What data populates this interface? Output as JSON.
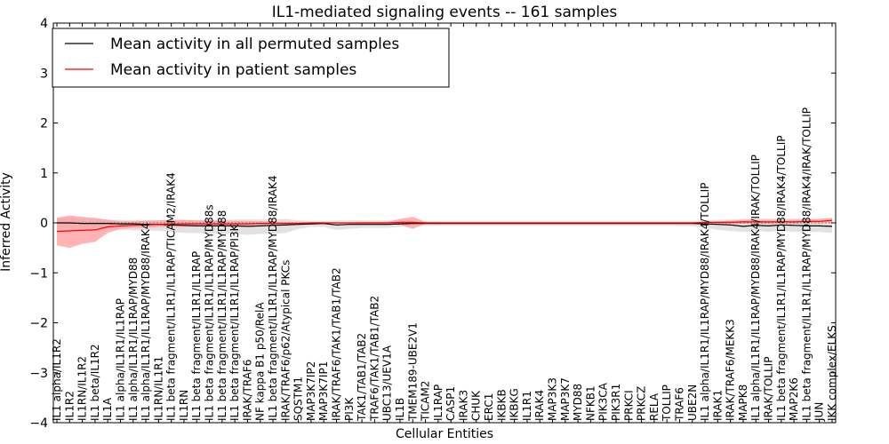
{
  "chart_data": {
    "type": "line",
    "title": "IL1-mediated signaling events -- 161 samples",
    "xlabel": "Cellular Entities",
    "ylabel": "Inferred Activity",
    "ylim": [
      -4,
      4
    ],
    "yticks": [
      4,
      3,
      2,
      1,
      0,
      -1,
      -2,
      -3,
      -4
    ],
    "ytick_labels": [
      "4",
      "3",
      "2",
      "1",
      "0",
      "−1",
      "−2",
      "−3",
      "−4"
    ],
    "grid": false,
    "legend_position": "top-left",
    "categories": [
      "IL1 alpha/IL1R2",
      "IL1R2",
      "IL1RN/IL1R2",
      "IL1 beta/IL1R2",
      "IL1A",
      "IL1 alpha/IL1R1/IL1RAP",
      "IL1 alpha/IL1R1/IL1RAP/MYD88",
      "IL1 alpha/IL1R1/IL1RAP/MYD88/IRAK4",
      "IL1RN/IL1R1",
      "IL1 beta fragment/IL1R1/IL1RAP/TICAM2/IRAK4",
      "IL1RN",
      "IL1 beta fragment/IL1R1/IL1RAP",
      "IL1 beta fragment/IL1R1/IL1RAP/MYD88s",
      "IL1 beta fragment/IL1R1/IL1RAP/MYD88",
      "IL1 beta fragment/IL1R1/IL1RAP/PI3K",
      "IRAK/TRAF6",
      "NF kappa B1 p50/RelA",
      "IL1 beta fragment/IL1R1/IL1RAP/MYD88/IRAK4",
      "IRAK/TRAF6/p62/Atypical PKCs",
      "SQSTM1",
      "MAP3K7IP2",
      "MAP3K7IP1",
      "IRAK/TRAF6/TAK1/TAB1/TAB2",
      "PI3K",
      "TAK1/TAB1/TAB2",
      "TRAF6/TAK1/TAB1/TAB2",
      "UBC13/UEV1A",
      "IL1B",
      "TMEM189-UBE2V1",
      "TICAM2",
      "IL1RAP",
      "CASP1",
      "IRAK3",
      "CHUK",
      "ERC1",
      "IKBKB",
      "IKBKG",
      "IL1R1",
      "IRAK4",
      "MAP3K3",
      "MAP3K7",
      "MYD88",
      "NFKB1",
      "PIK3CA",
      "PIK3R1",
      "PRKCI",
      "PRKCZ",
      "RELA",
      "TOLLIP",
      "TRAF6",
      "UBE2N",
      "IL1 alpha/IL1R1/IL1RAP/MYD88/IRAK4/TOLLIP",
      "IRAK1",
      "IRAK/TRAF6/MEKK3",
      "MAPK8",
      "IL1 alpha/IL1R1/IL1RAP/MYD88/IRAK4/IRAK/TOLLIP",
      "IRAK/TOLLIP",
      "IL1 beta fragment/IL1R1/IL1RAP/MYD88/IRAK4/TOLLIP",
      "MAP2K6",
      "IL1 beta fragment/IL1R1/IL1RAP/MYD88/IRAK4/IRAK/TOLLIP",
      "JUN",
      "IKK complex/ELKS"
    ],
    "series": [
      {
        "name": "Mean activity in all permuted samples",
        "color": "#000000",
        "values": [
          0.0,
          0.0,
          -0.01,
          -0.01,
          -0.01,
          -0.02,
          -0.02,
          -0.03,
          -0.03,
          -0.04,
          -0.05,
          -0.06,
          -0.06,
          -0.06,
          -0.06,
          -0.07,
          -0.06,
          -0.05,
          -0.04,
          -0.03,
          -0.02,
          -0.01,
          -0.04,
          -0.03,
          -0.03,
          -0.03,
          -0.03,
          -0.02,
          -0.01,
          -0.01,
          -0.01,
          -0.01,
          -0.01,
          -0.01,
          -0.01,
          -0.01,
          -0.01,
          -0.01,
          -0.01,
          -0.01,
          -0.01,
          -0.01,
          -0.01,
          -0.01,
          -0.01,
          -0.01,
          -0.01,
          -0.01,
          -0.01,
          -0.01,
          -0.01,
          -0.02,
          -0.03,
          -0.04,
          -0.07,
          -0.05,
          -0.06,
          -0.04,
          -0.05,
          -0.06,
          -0.06,
          -0.07
        ],
        "band_upper": [
          0.1,
          0.1,
          0.08,
          0.08,
          0.07,
          0.06,
          0.06,
          0.06,
          0.06,
          0.06,
          0.06,
          0.06,
          0.06,
          0.06,
          0.07,
          0.07,
          0.07,
          0.07,
          0.08,
          0.05,
          0.04,
          0.04,
          0.05,
          0.05,
          0.05,
          0.05,
          0.05,
          0.05,
          0.05,
          0.04,
          0.04,
          0.04,
          0.04,
          0.04,
          0.04,
          0.04,
          0.04,
          0.04,
          0.04,
          0.04,
          0.04,
          0.04,
          0.04,
          0.04,
          0.04,
          0.04,
          0.04,
          0.04,
          0.04,
          0.04,
          0.04,
          0.05,
          0.06,
          0.07,
          0.08,
          0.08,
          0.09,
          0.08,
          0.09,
          0.08,
          0.08,
          0.1
        ],
        "band_lower": [
          -0.1,
          -0.1,
          -0.12,
          -0.12,
          -0.13,
          -0.14,
          -0.15,
          -0.15,
          -0.16,
          -0.18,
          -0.2,
          -0.2,
          -0.22,
          -0.22,
          -0.22,
          -0.24,
          -0.22,
          -0.22,
          -0.2,
          -0.12,
          -0.08,
          -0.08,
          -0.14,
          -0.12,
          -0.1,
          -0.1,
          -0.1,
          -0.08,
          -0.06,
          -0.06,
          -0.06,
          -0.06,
          -0.06,
          -0.06,
          -0.06,
          -0.06,
          -0.06,
          -0.06,
          -0.06,
          -0.06,
          -0.06,
          -0.06,
          -0.06,
          -0.06,
          -0.06,
          -0.06,
          -0.06,
          -0.06,
          -0.06,
          -0.06,
          -0.07,
          -0.1,
          -0.14,
          -0.16,
          -0.18,
          -0.16,
          -0.18,
          -0.16,
          -0.18,
          -0.18,
          -0.18,
          -0.2
        ]
      },
      {
        "name": "Mean activity in patient samples",
        "color": "#ff0000",
        "values": [
          -0.17,
          -0.16,
          -0.15,
          -0.14,
          -0.08,
          -0.06,
          -0.05,
          -0.04,
          -0.03,
          -0.02,
          -0.02,
          -0.02,
          -0.02,
          -0.02,
          -0.02,
          -0.02,
          -0.01,
          -0.01,
          -0.01,
          -0.01,
          0.0,
          0.0,
          0.0,
          0.0,
          0.0,
          0.0,
          0.0,
          0.01,
          0.01,
          0.0,
          0.0,
          0.0,
          0.0,
          0.0,
          0.0,
          0.0,
          0.0,
          0.0,
          0.0,
          0.0,
          0.0,
          0.0,
          0.0,
          0.0,
          0.0,
          0.0,
          0.0,
          0.0,
          0.0,
          0.0,
          0.0,
          0.01,
          0.01,
          0.01,
          0.02,
          0.02,
          0.02,
          0.02,
          0.02,
          0.03,
          0.03,
          0.05
        ],
        "band_upper": [
          0.1,
          0.15,
          0.12,
          0.1,
          0.06,
          0.03,
          0.03,
          0.04,
          0.05,
          0.06,
          0.06,
          0.05,
          0.05,
          0.05,
          0.04,
          0.04,
          0.03,
          0.03,
          0.02,
          0.02,
          0.01,
          0.01,
          0.01,
          0.01,
          0.02,
          0.02,
          0.02,
          0.08,
          0.12,
          0.02,
          0.01,
          0.01,
          0.01,
          0.01,
          0.01,
          0.01,
          0.01,
          0.01,
          0.01,
          0.01,
          0.01,
          0.01,
          0.01,
          0.01,
          0.01,
          0.01,
          0.01,
          0.01,
          0.01,
          0.01,
          0.01,
          0.02,
          0.03,
          0.04,
          0.06,
          0.06,
          0.06,
          0.06,
          0.06,
          0.07,
          0.08,
          0.1
        ],
        "band_lower": [
          -0.45,
          -0.5,
          -0.42,
          -0.38,
          -0.2,
          -0.12,
          -0.1,
          -0.1,
          -0.08,
          -0.08,
          -0.08,
          -0.07,
          -0.07,
          -0.07,
          -0.06,
          -0.05,
          -0.04,
          -0.04,
          -0.03,
          -0.02,
          -0.01,
          -0.01,
          -0.01,
          -0.01,
          -0.02,
          -0.02,
          -0.02,
          -0.04,
          -0.12,
          -0.02,
          -0.01,
          -0.01,
          -0.01,
          -0.01,
          -0.01,
          -0.01,
          -0.01,
          -0.01,
          -0.01,
          -0.01,
          -0.01,
          -0.01,
          -0.01,
          -0.01,
          -0.01,
          -0.01,
          -0.01,
          -0.01,
          -0.01,
          -0.01,
          -0.01,
          -0.01,
          -0.02,
          -0.03,
          -0.02,
          -0.02,
          -0.02,
          -0.02,
          -0.02,
          -0.01,
          -0.01,
          0.0
        ]
      }
    ]
  }
}
